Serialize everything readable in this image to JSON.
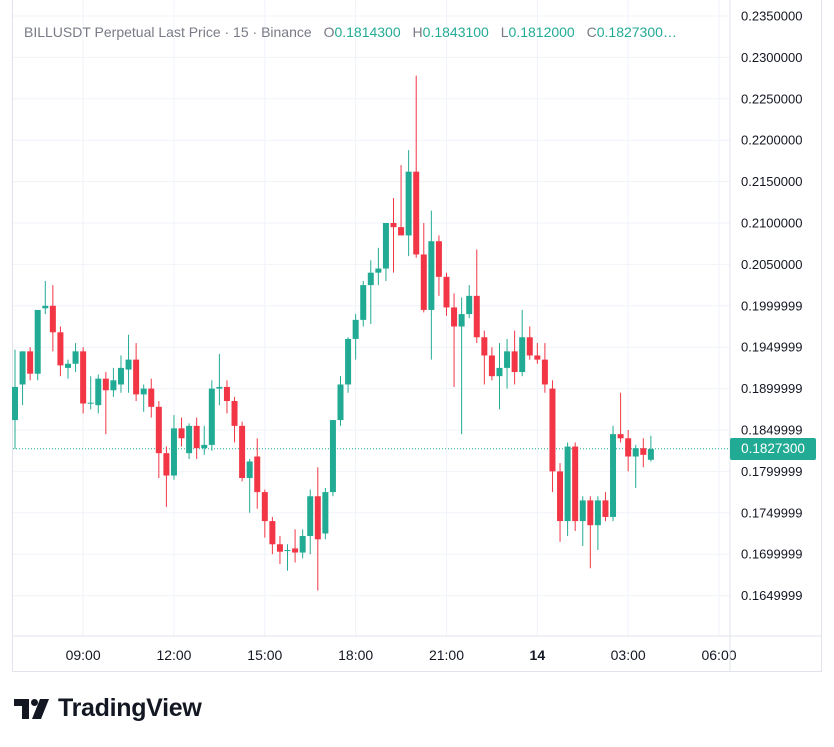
{
  "legend": {
    "symbol": "BILLUSDT Perpetual Last Price · 15 · Binance",
    "open_key": "O",
    "open": "0.1814300",
    "high_key": "H",
    "high": "0.1843100",
    "low_key": "L",
    "low": "0.1812000",
    "close_key": "C",
    "close": "0.1827300…"
  },
  "last_price_label": "0.1827300",
  "brand": {
    "name": "TradingView"
  },
  "colors": {
    "up": "#22ab94",
    "down": "#f23645",
    "grid": "#f0f3fa",
    "axis_text": "#131722",
    "last_price_line": "#22ab94"
  },
  "chart_data": {
    "type": "candlestick",
    "symbol": "BILLUSDT",
    "ylim": [
      0.161,
      0.2355
    ],
    "y_ticks": [
      "0.2350000",
      "0.2300000",
      "0.2250000",
      "0.2200000",
      "0.2150000",
      "0.2100000",
      "0.2050000",
      "0.1999999",
      "0.1949999",
      "0.1899999",
      "0.1849999",
      "0.1799999",
      "0.1749999",
      "0.1699999",
      "0.1649999"
    ],
    "x_ticks": [
      {
        "label": "09:00",
        "index": 9
      },
      {
        "label": "12:00",
        "index": 21
      },
      {
        "label": "15:00",
        "index": 33
      },
      {
        "label": "18:00",
        "index": 45
      },
      {
        "label": "21:00",
        "index": 57
      },
      {
        "label": "14",
        "index": 69
      },
      {
        "label": "03:00",
        "index": 81
      },
      {
        "label": "06:00",
        "index": 93
      }
    ],
    "last_price": 0.18273,
    "candles": [
      {
        "o": 0.1862,
        "h": 0.1947,
        "l": 0.1827,
        "c": 0.1902
      },
      {
        "o": 0.1905,
        "h": 0.1945,
        "l": 0.188,
        "c": 0.1945
      },
      {
        "o": 0.1945,
        "h": 0.195,
        "l": 0.191,
        "c": 0.1918
      },
      {
        "o": 0.1918,
        "h": 0.1995,
        "l": 0.191,
        "c": 0.1995
      },
      {
        "o": 0.1997,
        "h": 0.203,
        "l": 0.199,
        "c": 0.2
      },
      {
        "o": 0.2,
        "h": 0.2025,
        "l": 0.1945,
        "c": 0.1968
      },
      {
        "o": 0.1968,
        "h": 0.1975,
        "l": 0.1915,
        "c": 0.1928
      },
      {
        "o": 0.1925,
        "h": 0.1935,
        "l": 0.1912,
        "c": 0.193
      },
      {
        "o": 0.193,
        "h": 0.1955,
        "l": 0.192,
        "c": 0.1945
      },
      {
        "o": 0.1945,
        "h": 0.195,
        "l": 0.187,
        "c": 0.1882
      },
      {
        "o": 0.1882,
        "h": 0.1915,
        "l": 0.1875,
        "c": 0.1883
      },
      {
        "o": 0.188,
        "h": 0.1917,
        "l": 0.187,
        "c": 0.1912
      },
      {
        "o": 0.1912,
        "h": 0.192,
        "l": 0.1845,
        "c": 0.1898
      },
      {
        "o": 0.1898,
        "h": 0.1925,
        "l": 0.189,
        "c": 0.191
      },
      {
        "o": 0.1905,
        "h": 0.194,
        "l": 0.1895,
        "c": 0.1925
      },
      {
        "o": 0.1923,
        "h": 0.1965,
        "l": 0.1895,
        "c": 0.1935
      },
      {
        "o": 0.1935,
        "h": 0.1955,
        "l": 0.1885,
        "c": 0.1893
      },
      {
        "o": 0.1893,
        "h": 0.1905,
        "l": 0.1872,
        "c": 0.19
      },
      {
        "o": 0.19,
        "h": 0.1912,
        "l": 0.1865,
        "c": 0.1878
      },
      {
        "o": 0.1878,
        "h": 0.1885,
        "l": 0.1792,
        "c": 0.1822
      },
      {
        "o": 0.1822,
        "h": 0.183,
        "l": 0.1757,
        "c": 0.1795
      },
      {
        "o": 0.1795,
        "h": 0.1868,
        "l": 0.179,
        "c": 0.1852
      },
      {
        "o": 0.1852,
        "h": 0.1865,
        "l": 0.183,
        "c": 0.184
      },
      {
        "o": 0.1822,
        "h": 0.1858,
        "l": 0.1815,
        "c": 0.1855
      },
      {
        "o": 0.1855,
        "h": 0.1865,
        "l": 0.1815,
        "c": 0.1828
      },
      {
        "o": 0.1828,
        "h": 0.1855,
        "l": 0.182,
        "c": 0.1832
      },
      {
        "o": 0.1832,
        "h": 0.191,
        "l": 0.1825,
        "c": 0.19
      },
      {
        "o": 0.19,
        "h": 0.1942,
        "l": 0.188,
        "c": 0.1902
      },
      {
        "o": 0.1902,
        "h": 0.191,
        "l": 0.187,
        "c": 0.1885
      },
      {
        "o": 0.1885,
        "h": 0.189,
        "l": 0.1835,
        "c": 0.1855
      },
      {
        "o": 0.1855,
        "h": 0.186,
        "l": 0.1788,
        "c": 0.1792
      },
      {
        "o": 0.1792,
        "h": 0.1815,
        "l": 0.175,
        "c": 0.1812
      },
      {
        "o": 0.1818,
        "h": 0.184,
        "l": 0.1755,
        "c": 0.1775
      },
      {
        "o": 0.1775,
        "h": 0.1778,
        "l": 0.172,
        "c": 0.174
      },
      {
        "o": 0.174,
        "h": 0.1745,
        "l": 0.17,
        "c": 0.1712
      },
      {
        "o": 0.1712,
        "h": 0.1722,
        "l": 0.1688,
        "c": 0.1703
      },
      {
        "o": 0.1705,
        "h": 0.1712,
        "l": 0.168,
        "c": 0.1705
      },
      {
        "o": 0.1707,
        "h": 0.173,
        "l": 0.169,
        "c": 0.1702
      },
      {
        "o": 0.1702,
        "h": 0.173,
        "l": 0.1695,
        "c": 0.1722
      },
      {
        "o": 0.1722,
        "h": 0.1778,
        "l": 0.17,
        "c": 0.177
      },
      {
        "o": 0.177,
        "h": 0.1805,
        "l": 0.1656,
        "c": 0.1718
      },
      {
        "o": 0.1725,
        "h": 0.178,
        "l": 0.1718,
        "c": 0.1775
      },
      {
        "o": 0.1775,
        "h": 0.1862,
        "l": 0.177,
        "c": 0.1862
      },
      {
        "o": 0.1862,
        "h": 0.1915,
        "l": 0.1855,
        "c": 0.1905
      },
      {
        "o": 0.1905,
        "h": 0.1962,
        "l": 0.1895,
        "c": 0.196
      },
      {
        "o": 0.196,
        "h": 0.199,
        "l": 0.1935,
        "c": 0.1983
      },
      {
        "o": 0.1983,
        "h": 0.203,
        "l": 0.1975,
        "c": 0.2025
      },
      {
        "o": 0.2025,
        "h": 0.2055,
        "l": 0.1978,
        "c": 0.204
      },
      {
        "o": 0.204,
        "h": 0.207,
        "l": 0.2025,
        "c": 0.2045
      },
      {
        "o": 0.2045,
        "h": 0.21,
        "l": 0.203,
        "c": 0.21
      },
      {
        "o": 0.21,
        "h": 0.213,
        "l": 0.204,
        "c": 0.2095
      },
      {
        "o": 0.2095,
        "h": 0.217,
        "l": 0.2085,
        "c": 0.2085
      },
      {
        "o": 0.2085,
        "h": 0.2188,
        "l": 0.206,
        "c": 0.2162
      },
      {
        "o": 0.2162,
        "h": 0.2278,
        "l": 0.2058,
        "c": 0.2062
      },
      {
        "o": 0.2062,
        "h": 0.21,
        "l": 0.1992,
        "c": 0.1995
      },
      {
        "o": 0.1995,
        "h": 0.2115,
        "l": 0.1935,
        "c": 0.2078
      },
      {
        "o": 0.2078,
        "h": 0.2085,
        "l": 0.2012,
        "c": 0.2035
      },
      {
        "o": 0.2035,
        "h": 0.204,
        "l": 0.1988,
        "c": 0.1998
      },
      {
        "o": 0.1998,
        "h": 0.2015,
        "l": 0.1902,
        "c": 0.1975
      },
      {
        "o": 0.1975,
        "h": 0.201,
        "l": 0.1845,
        "c": 0.199
      },
      {
        "o": 0.199,
        "h": 0.2025,
        "l": 0.1985,
        "c": 0.2012
      },
      {
        "o": 0.2012,
        "h": 0.2068,
        "l": 0.1955,
        "c": 0.1962
      },
      {
        "o": 0.1962,
        "h": 0.197,
        "l": 0.1905,
        "c": 0.194
      },
      {
        "o": 0.194,
        "h": 0.195,
        "l": 0.191,
        "c": 0.1915
      },
      {
        "o": 0.1915,
        "h": 0.1955,
        "l": 0.1875,
        "c": 0.1925
      },
      {
        "o": 0.1925,
        "h": 0.196,
        "l": 0.19,
        "c": 0.1945
      },
      {
        "o": 0.1945,
        "h": 0.197,
        "l": 0.1905,
        "c": 0.192
      },
      {
        "o": 0.192,
        "h": 0.1995,
        "l": 0.1915,
        "c": 0.1962
      },
      {
        "o": 0.1962,
        "h": 0.1975,
        "l": 0.1935,
        "c": 0.194
      },
      {
        "o": 0.194,
        "h": 0.1955,
        "l": 0.193,
        "c": 0.1935
      },
      {
        "o": 0.1935,
        "h": 0.1955,
        "l": 0.1895,
        "c": 0.1905
      },
      {
        "o": 0.19,
        "h": 0.191,
        "l": 0.1775,
        "c": 0.18
      },
      {
        "o": 0.18,
        "h": 0.181,
        "l": 0.1715,
        "c": 0.174
      },
      {
        "o": 0.174,
        "h": 0.1835,
        "l": 0.1722,
        "c": 0.183
      },
      {
        "o": 0.183,
        "h": 0.1835,
        "l": 0.1728,
        "c": 0.174
      },
      {
        "o": 0.174,
        "h": 0.177,
        "l": 0.171,
        "c": 0.1765
      },
      {
        "o": 0.1765,
        "h": 0.177,
        "l": 0.1683,
        "c": 0.1735
      },
      {
        "o": 0.1735,
        "h": 0.177,
        "l": 0.1705,
        "c": 0.1765
      },
      {
        "o": 0.1765,
        "h": 0.1775,
        "l": 0.174,
        "c": 0.1745
      },
      {
        "o": 0.1745,
        "h": 0.1855,
        "l": 0.174,
        "c": 0.1845
      },
      {
        "o": 0.1845,
        "h": 0.1895,
        "l": 0.1835,
        "c": 0.184
      },
      {
        "o": 0.184,
        "h": 0.185,
        "l": 0.18,
        "c": 0.1818
      },
      {
        "o": 0.1818,
        "h": 0.1832,
        "l": 0.178,
        "c": 0.1828
      },
      {
        "o": 0.1828,
        "h": 0.184,
        "l": 0.1805,
        "c": 0.182
      },
      {
        "o": 0.1814,
        "h": 0.1843,
        "l": 0.1812,
        "c": 0.1827
      }
    ]
  }
}
